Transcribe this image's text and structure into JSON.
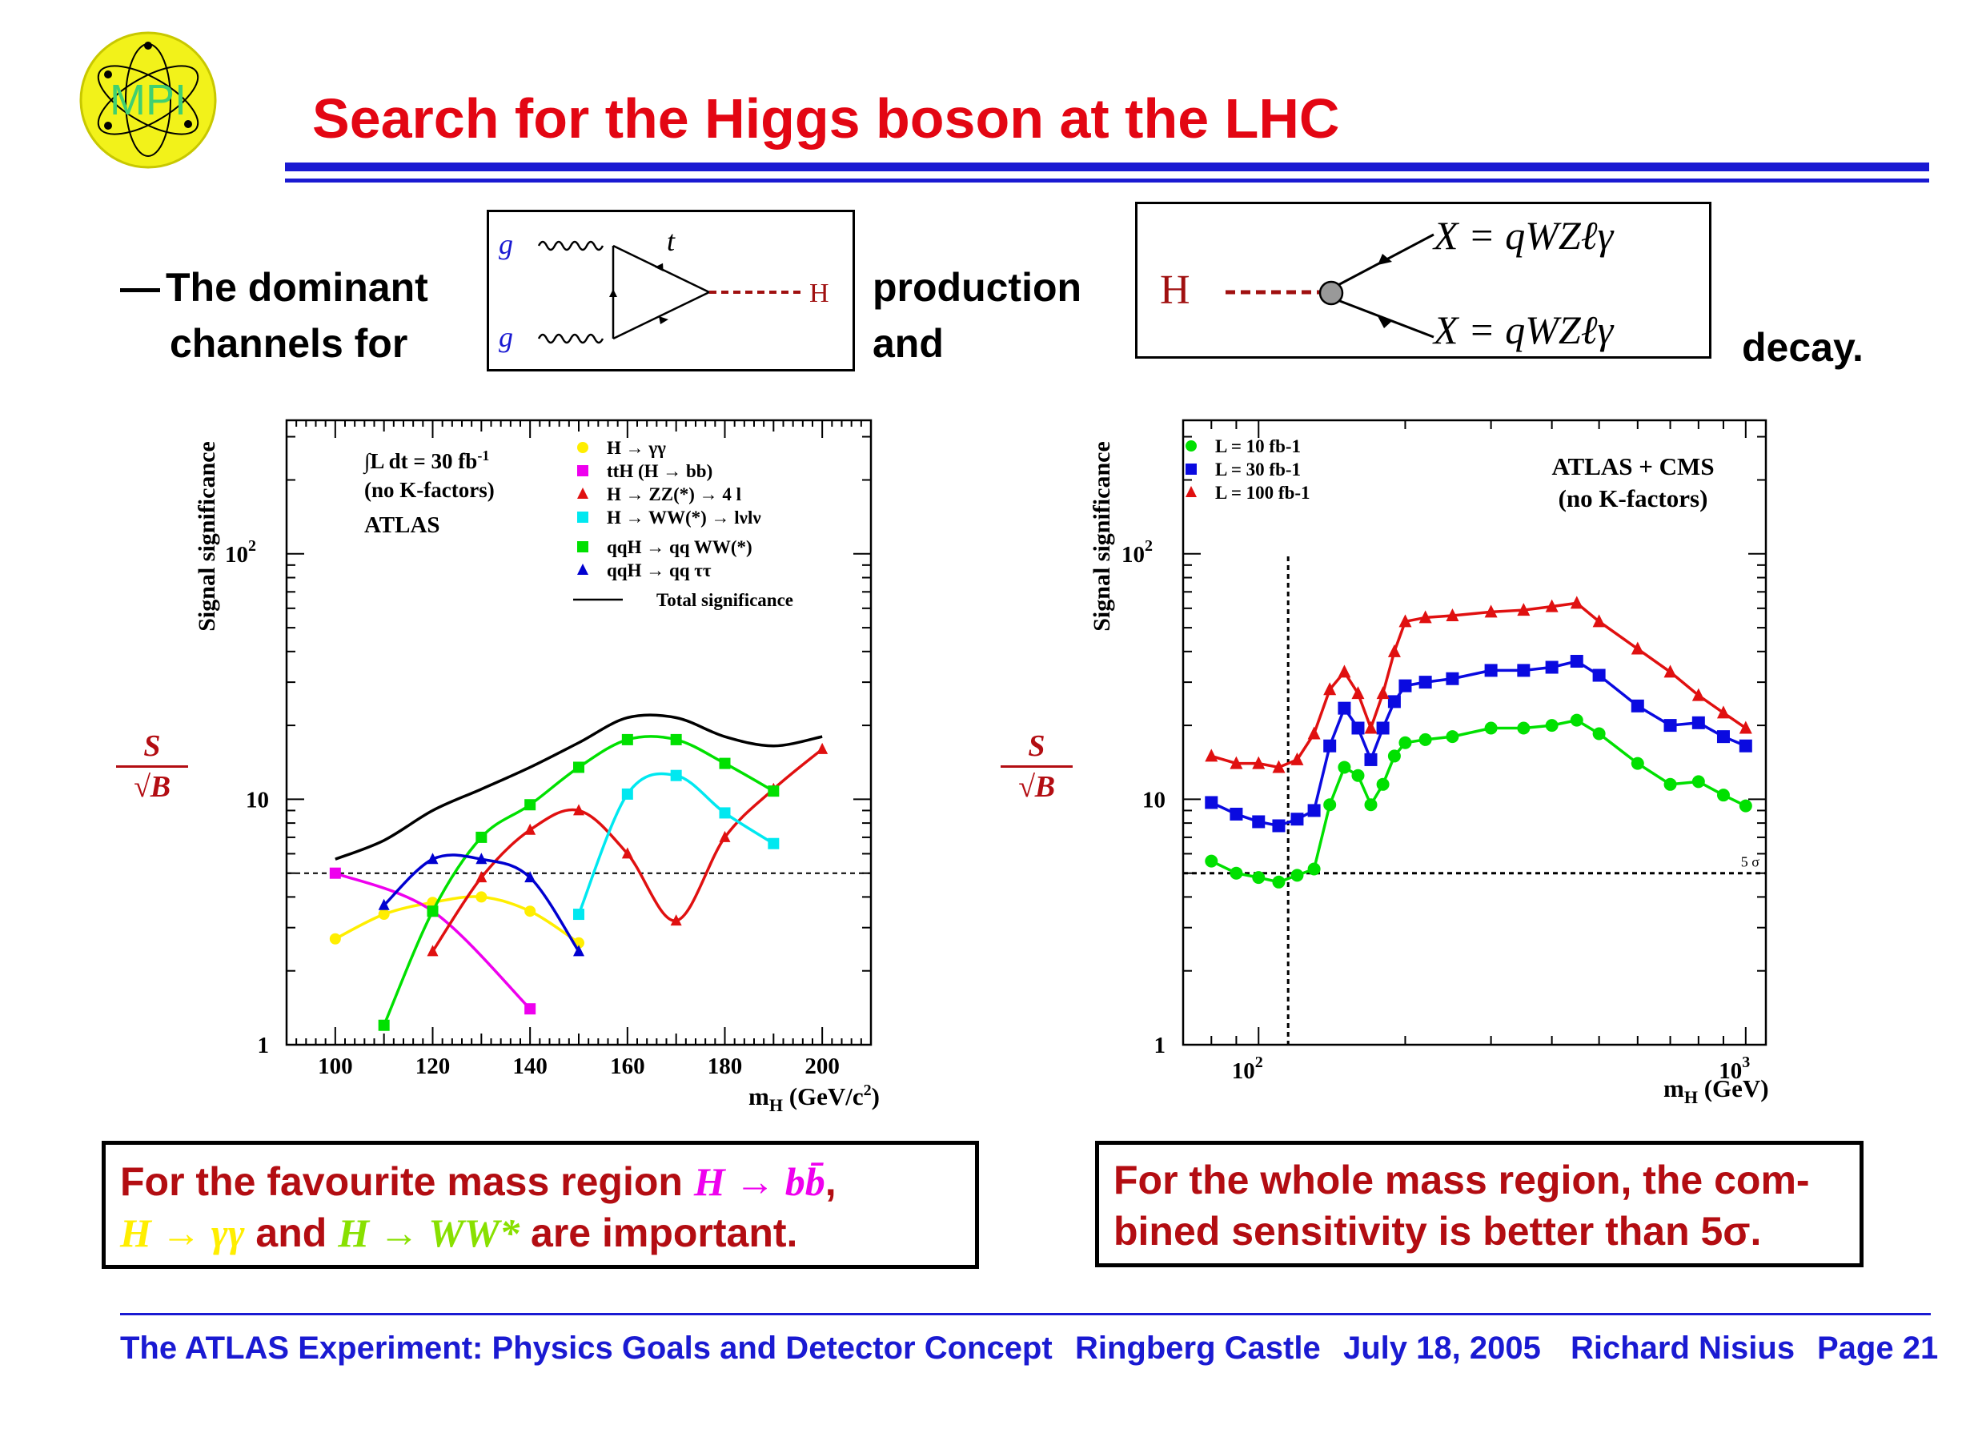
{
  "header": {
    "logo_text": "MPI",
    "title": "Search for the Higgs boson at the LHC"
  },
  "intro": {
    "dash": "—",
    "line1": "The dominant",
    "line2": "channels for",
    "production": "production",
    "and": "and",
    "decay": "decay."
  },
  "production_diagram": {
    "g_top": "g",
    "g_bottom": "g",
    "t": "t",
    "H": "H"
  },
  "decay_diagram": {
    "H": "H",
    "x_top": "X = qWZℓγ",
    "x_bottom": "X = qWZℓγ"
  },
  "left_plot": {
    "ylabel": "Signal significance",
    "frac_num": "S",
    "frac_den": "√B",
    "lumi_text": "∫L dt = 30 fb",
    "lumi_sup": "-1",
    "kfactors": "(no K-factors)",
    "experiment": "ATLAS",
    "legend": [
      {
        "label": "H  →  γγ",
        "color": "#ffee00",
        "marker": "circle"
      },
      {
        "label": "ttH (H  →  bb)",
        "color": "#ee00ee",
        "marker": "square"
      },
      {
        "label": "H  →  ZZ(*)  →  4 l",
        "color": "#e01010",
        "marker": "triangle"
      },
      {
        "label": "H  →  WW(*)  →  lνlν",
        "color": "#00e8f0",
        "marker": "square"
      },
      {
        "label": "qqH  →  qq WW(*)",
        "color": "#00e000",
        "marker": "square"
      },
      {
        "label": "qqH  →  qq ττ",
        "color": "#0000d0",
        "marker": "triangle"
      },
      {
        "label": "Total significance",
        "color": "#000000",
        "marker": "line"
      }
    ],
    "xticks": [
      "100",
      "120",
      "140",
      "160",
      "180",
      "200"
    ],
    "yticks": [
      "1",
      "10",
      "10 2"
    ],
    "xlabel": "mH (GeV/c2)"
  },
  "right_plot": {
    "ylabel": "Signal significance",
    "frac_num": "S",
    "frac_den": "√B",
    "combo": "ATLAS + CMS",
    "kfactors": "(no K-factors)",
    "legend": [
      {
        "label": "L = 10 fb-1",
        "color": "#00e000",
        "marker": "circle"
      },
      {
        "label": "L = 30 fb-1",
        "color": "#0a0ae0",
        "marker": "square"
      },
      {
        "label": "L = 100 fb-1",
        "color": "#e01010",
        "marker": "triangle"
      }
    ],
    "xticks": [
      "10 2",
      "10 3"
    ],
    "yticks": [
      "1",
      "10",
      "10 2"
    ],
    "five_sigma": "5 σ",
    "xlabel": "mH (GeV)"
  },
  "chart_data": [
    {
      "type": "line",
      "ylabel": "Signal significance",
      "xlabel": "mH (GeV/c2)",
      "xlim": [
        90,
        210
      ],
      "ylim": [
        1,
        350
      ],
      "yscale": "log",
      "threshold": 5,
      "series": [
        {
          "name": "H → γγ",
          "color": "#ffee00",
          "marker": "circle",
          "x": [
            100,
            110,
            120,
            130,
            140,
            150
          ],
          "values": [
            2.7,
            3.4,
            3.8,
            4.0,
            3.5,
            2.6
          ]
        },
        {
          "name": "ttH (H → bb)",
          "color": "#ee00ee",
          "marker": "square",
          "x": [
            100,
            120,
            140
          ],
          "values": [
            5.0,
            3.5,
            1.4
          ]
        },
        {
          "name": "H → ZZ(*) → 4 l",
          "color": "#e01010",
          "marker": "triangle",
          "x": [
            120,
            130,
            140,
            150,
            160,
            170,
            180,
            190,
            200
          ],
          "values": [
            2.4,
            4.8,
            7.5,
            9.0,
            6.0,
            3.2,
            7.0,
            11.0,
            16.0
          ]
        },
        {
          "name": "H → WW(*) → lνlν",
          "color": "#00e8f0",
          "marker": "square",
          "x": [
            150,
            160,
            170,
            180,
            190
          ],
          "values": [
            3.4,
            10.5,
            12.5,
            8.8,
            6.6
          ]
        },
        {
          "name": "qqH → qq WW(*)",
          "color": "#00e000",
          "marker": "square",
          "x": [
            110,
            120,
            130,
            140,
            150,
            160,
            170,
            180,
            190
          ],
          "values": [
            1.2,
            3.5,
            7.0,
            9.5,
            13.5,
            17.5,
            17.5,
            14.0,
            10.8
          ]
        },
        {
          "name": "qqH → qq ττ",
          "color": "#0000d0",
          "marker": "triangle",
          "x": [
            110,
            120,
            130,
            140,
            150
          ],
          "values": [
            3.7,
            5.7,
            5.7,
            4.8,
            2.4
          ]
        },
        {
          "name": "Total significance",
          "color": "#000000",
          "marker": "none",
          "x": [
            100,
            110,
            120,
            130,
            140,
            150,
            160,
            170,
            180,
            190,
            200
          ],
          "values": [
            5.7,
            6.8,
            9.0,
            11.0,
            13.5,
            17.0,
            21.5,
            21.5,
            18.0,
            16.5,
            18.0
          ]
        }
      ]
    },
    {
      "type": "line",
      "ylabel": "Signal significance",
      "xlabel": "mH (GeV)",
      "xscale": "log",
      "yscale": "log",
      "xlim": [
        70,
        1100
      ],
      "ylim": [
        1,
        350
      ],
      "threshold": 5,
      "threshold_label": "5 σ",
      "vline": 115,
      "series": [
        {
          "name": "L = 10 fb-1",
          "color": "#00e000",
          "marker": "circle",
          "x": [
            80,
            90,
            100,
            110,
            120,
            130,
            140,
            150,
            160,
            170,
            180,
            190,
            200,
            220,
            250,
            300,
            350,
            400,
            450,
            500,
            600,
            700,
            800,
            900,
            1000
          ],
          "values": [
            5.6,
            5.0,
            4.8,
            4.6,
            4.9,
            5.2,
            9.5,
            13.5,
            12.5,
            9.5,
            11.5,
            15.0,
            17.0,
            17.5,
            18.0,
            19.5,
            19.5,
            20.0,
            21.0,
            18.5,
            14.0,
            11.5,
            11.8,
            10.4,
            9.4
          ]
        },
        {
          "name": "L = 30 fb-1",
          "color": "#0a0ae0",
          "marker": "square",
          "x": [
            80,
            90,
            100,
            110,
            120,
            130,
            140,
            150,
            160,
            170,
            180,
            190,
            200,
            220,
            250,
            300,
            350,
            400,
            450,
            500,
            600,
            700,
            800,
            900,
            1000
          ],
          "values": [
            9.7,
            8.7,
            8.1,
            7.8,
            8.3,
            9.0,
            16.5,
            23.5,
            19.5,
            14.5,
            19.5,
            25.0,
            29.0,
            30.0,
            31.0,
            33.5,
            33.5,
            34.5,
            36.5,
            32.0,
            24.0,
            20.0,
            20.5,
            18.0,
            16.5
          ]
        },
        {
          "name": "L = 100 fb-1",
          "color": "#e01010",
          "marker": "triangle",
          "x": [
            80,
            90,
            100,
            110,
            120,
            130,
            140,
            150,
            160,
            170,
            180,
            190,
            200,
            220,
            250,
            300,
            350,
            400,
            450,
            500,
            600,
            700,
            800,
            900,
            1000
          ],
          "values": [
            15.0,
            14.0,
            14.0,
            13.5,
            14.5,
            18.5,
            28.0,
            33.0,
            27.0,
            19.5,
            27.0,
            40.0,
            53.0,
            55.0,
            56.0,
            58.0,
            59.0,
            61.0,
            63.0,
            53.0,
            41.0,
            33.0,
            26.5,
            22.5,
            19.5
          ]
        }
      ]
    }
  ],
  "notes": {
    "left_prefix": "For  the  favourite  mass  region",
    "left_hbb": "H  →  bb̄",
    "comma": ",",
    "left_hgg": "H → γγ",
    "and": "and",
    "left_hww": "H → WW*",
    "left_suffix": "are important.",
    "right_line1": "For the whole mass region, the com-",
    "right_line2": "bined sensitivity is better than 5σ."
  },
  "footer": {
    "talk": "The ATLAS Experiment: Physics Goals and Detector Concept",
    "venue": "Ringberg Castle",
    "date": "July 18, 2005",
    "author": "Richard Nisius",
    "page": "Page 21"
  },
  "colors": {
    "title": "#e30613",
    "rule": "#1a1ad2",
    "note_text": "#b30d12",
    "magenta": "#ee00ee",
    "yellow": "#ffee00",
    "green": "#88e000"
  }
}
